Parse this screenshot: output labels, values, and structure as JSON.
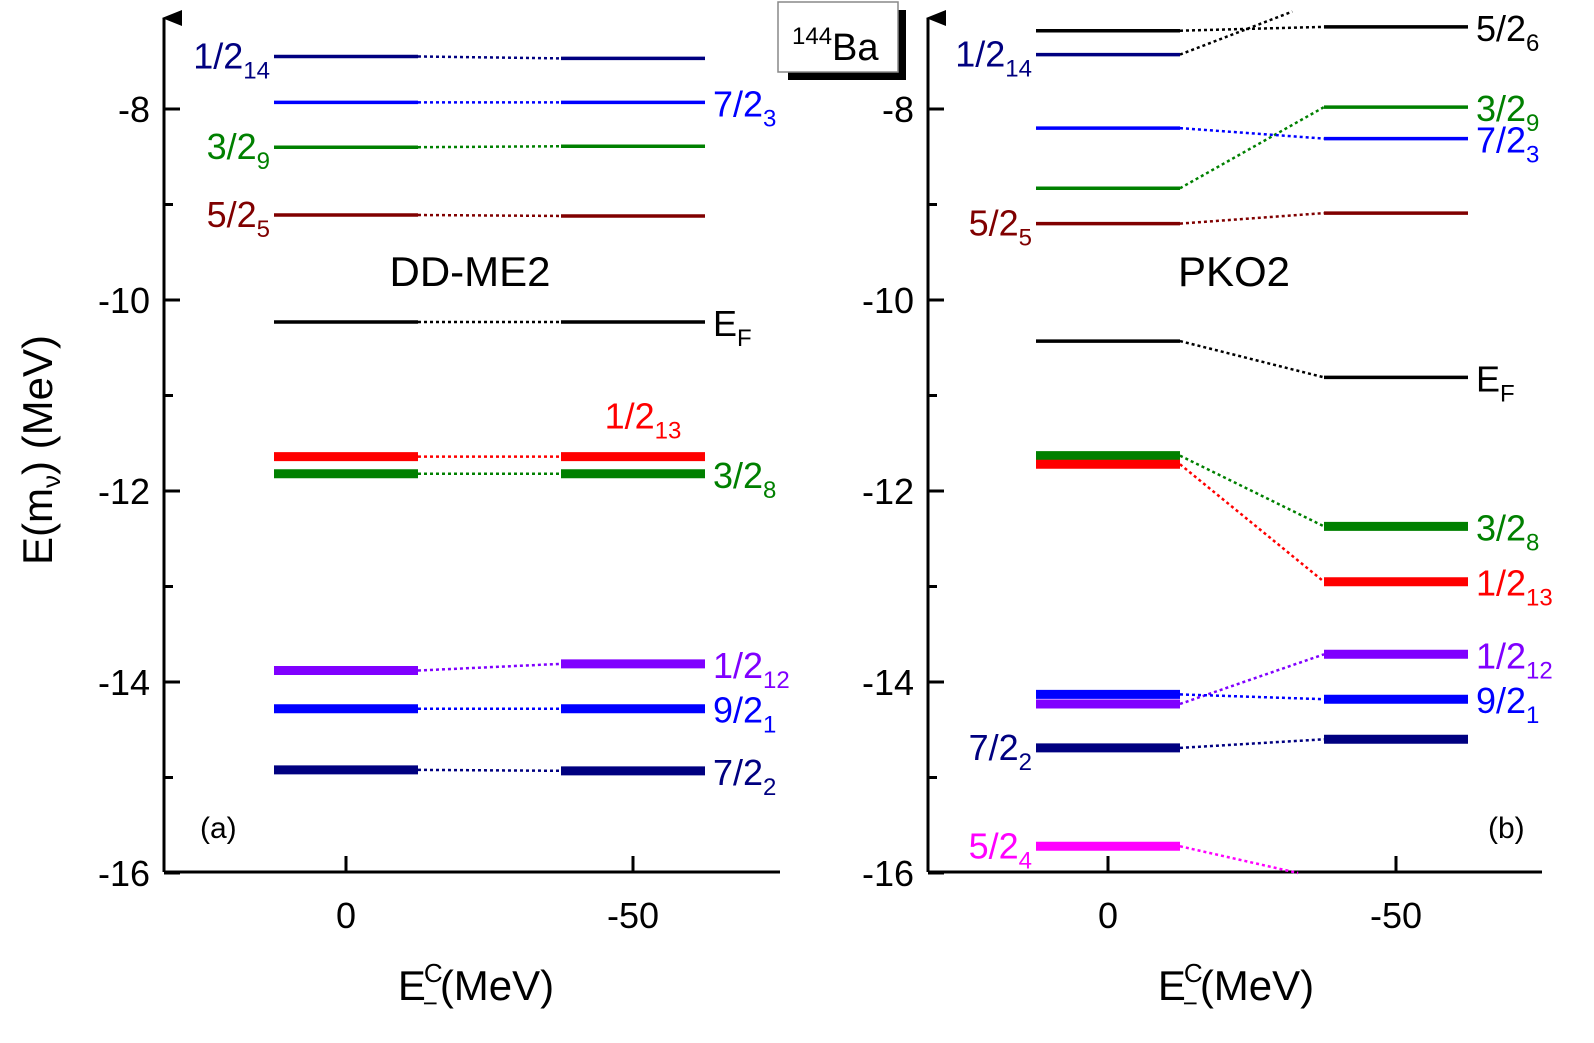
{
  "figure": {
    "nucleus_label": {
      "mass_number": "144",
      "symbol": "Ba"
    },
    "y_axis_label": {
      "main": "E(m",
      "sub": "ν",
      "tail": ") (MeV)"
    },
    "x_axis_label": {
      "main": "E",
      "sup": "C",
      "sub": "−",
      "tail": "(MeV)"
    }
  },
  "chart_data": [
    {
      "type": "level-diagram",
      "panel": "(a)",
      "model": "DD-ME2",
      "xlabel": "E_-^C (MeV)",
      "ylabel": "E(m_nu) (MeV)",
      "ylim": [
        -16,
        -7.1
      ],
      "x_ticks": [
        0,
        -50
      ],
      "y_ticks": [
        -8,
        -10,
        -12,
        -14,
        -16
      ],
      "columns": [
        0,
        -50
      ],
      "levels": [
        {
          "j": "1/2",
          "n": "14",
          "color": "#000080",
          "thick": false,
          "values": [
            -7.45,
            -7.47
          ],
          "label_side": "left",
          "label_col": 0
        },
        {
          "j": "7/2",
          "n": "3",
          "color": "#0000ff",
          "thick": false,
          "values": [
            -7.93,
            -7.93
          ],
          "label_side": "right",
          "label_col": 1
        },
        {
          "j": "3/2",
          "n": "9",
          "color": "#008000",
          "thick": false,
          "values": [
            -8.4,
            -8.39
          ],
          "label_side": "left",
          "label_col": 0
        },
        {
          "j": "5/2",
          "n": "5",
          "color": "#800000",
          "thick": false,
          "values": [
            -9.11,
            -9.12
          ],
          "label_side": "left",
          "label_col": 0
        },
        {
          "j": "E",
          "n": "F",
          "color": "#000000",
          "thick": false,
          "values": [
            -10.23,
            -10.23
          ],
          "label_side": "right",
          "label_col": 1
        },
        {
          "j": "1/2",
          "n": "13",
          "color": "#ff0000",
          "thick": true,
          "values": [
            -11.64,
            -11.64
          ],
          "label_side": "above",
          "label_col": 1
        },
        {
          "j": "3/2",
          "n": "8",
          "color": "#008000",
          "thick": true,
          "values": [
            -11.82,
            -11.82
          ],
          "label_side": "right",
          "label_col": 1
        },
        {
          "j": "1/2",
          "n": "12",
          "color": "#8000ff",
          "thick": true,
          "values": [
            -13.88,
            -13.81
          ],
          "label_side": "right",
          "label_col": 1
        },
        {
          "j": "9/2",
          "n": "1",
          "color": "#0000ff",
          "thick": true,
          "values": [
            -14.28,
            -14.28
          ],
          "label_side": "right",
          "label_col": 1
        },
        {
          "j": "7/2",
          "n": "2",
          "color": "#000080",
          "thick": true,
          "values": [
            -14.92,
            -14.93
          ],
          "label_side": "right",
          "label_col": 1
        }
      ]
    },
    {
      "type": "level-diagram",
      "panel": "(b)",
      "model": "PKO2",
      "xlabel": "E_-^C (MeV)",
      "ylabel": "E(m_nu) (MeV)",
      "ylim": [
        -16,
        -7.1
      ],
      "x_ticks": [
        0,
        -50
      ],
      "y_ticks": [
        -8,
        -10,
        -12,
        -14,
        -16
      ],
      "columns": [
        0,
        -50
      ],
      "levels": [
        {
          "j": "5/2",
          "n": "6",
          "color": "#000000",
          "thick": false,
          "values": [
            -7.18,
            -7.14
          ],
          "label_side": "right",
          "label_col": 1,
          "cross_to": -6.98
        },
        {
          "j": "1/2",
          "n": "14",
          "color": "#000080",
          "thick": false,
          "values": [
            -7.43,
            null
          ],
          "label_side": "left",
          "label_col": 0
        },
        {
          "j": "3/2",
          "n": "9",
          "color": "#008000",
          "thick": false,
          "values": [
            -8.83,
            -7.98
          ],
          "label_side": "right",
          "label_col": 1
        },
        {
          "j": "7/2",
          "n": "3",
          "color": "#0000ff",
          "thick": false,
          "values": [
            -8.2,
            -8.31
          ],
          "label_side": "right",
          "label_col": 1
        },
        {
          "j": "5/2",
          "n": "5",
          "color": "#800000",
          "thick": false,
          "values": [
            -9.2,
            -9.09
          ],
          "label_side": "left",
          "label_col": 0
        },
        {
          "j": "E",
          "n": "F",
          "color": "#000000",
          "thick": false,
          "values": [
            -10.43,
            -10.81
          ],
          "label_side": "right",
          "label_col": 1
        },
        {
          "j": "3/2",
          "n": "8",
          "color": "#008000",
          "thick": true,
          "values": [
            -11.63,
            -12.37
          ],
          "label_side": "right",
          "label_col": 1
        },
        {
          "j": "1/2",
          "n": "13",
          "color": "#ff0000",
          "thick": true,
          "values": [
            -11.72,
            -12.95
          ],
          "label_side": "right",
          "label_col": 1
        },
        {
          "j": "1/2",
          "n": "12",
          "color": "#8000ff",
          "thick": true,
          "values": [
            -14.23,
            -13.71
          ],
          "label_side": "right",
          "label_col": 1
        },
        {
          "j": "9/2",
          "n": "1",
          "color": "#0000ff",
          "thick": true,
          "values": [
            -14.13,
            -14.18
          ],
          "label_side": "right",
          "label_col": 1
        },
        {
          "j": "7/2",
          "n": "2",
          "color": "#000080",
          "thick": true,
          "values": [
            -14.69,
            -14.6
          ],
          "label_side": "left",
          "label_col": 0
        },
        {
          "j": "5/2",
          "n": "4",
          "color": "#ff00ff",
          "thick": true,
          "values": [
            -15.72,
            null
          ],
          "label_side": "left",
          "label_col": 0,
          "trail_to": [
            -33,
            -16
          ]
        }
      ]
    }
  ]
}
